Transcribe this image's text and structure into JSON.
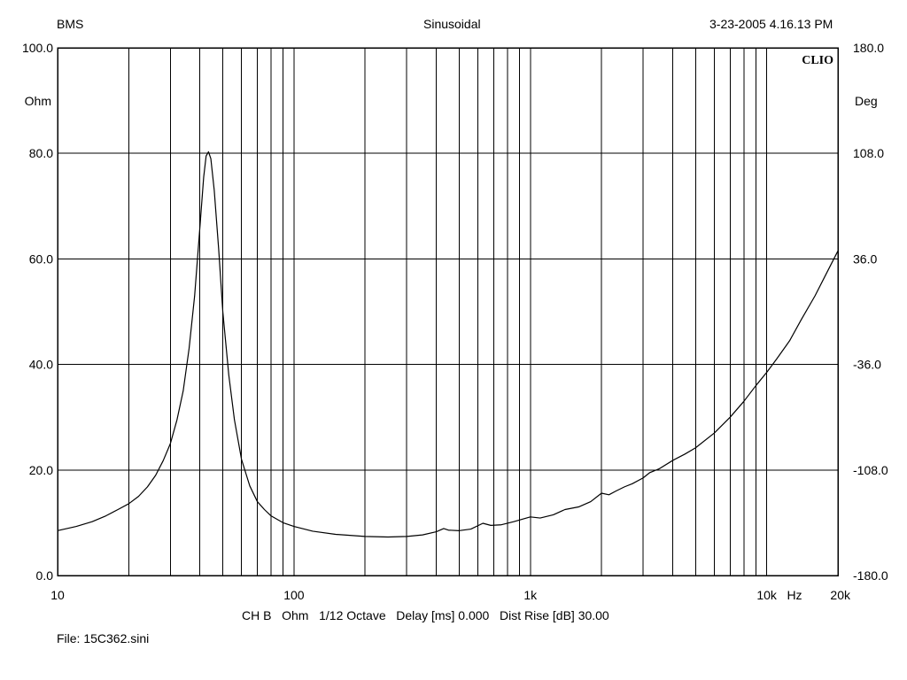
{
  "header": {
    "left": "BMS",
    "center": "Sinusoidal",
    "right": "3-23-2005 4.16.13 PM"
  },
  "brand": "CLIO",
  "footer": {
    "settings": "CH B   Ohm   1/12 Octave   Delay [ms] 0.000   Dist Rise [dB] 30.00",
    "file": "File: 15C362.sini"
  },
  "chart_data": {
    "type": "line",
    "title": "",
    "xlabel": "Hz",
    "ylabel": "Ohm",
    "y2label": "Deg",
    "xscale": "log",
    "xlim": [
      10,
      20000
    ],
    "ylim": [
      0,
      100
    ],
    "y2lim": [
      -180,
      180
    ],
    "grid": true,
    "x_tick_labels": [
      {
        "value": 10,
        "label": "10"
      },
      {
        "value": 100,
        "label": "100"
      },
      {
        "value": 1000,
        "label": "1k"
      },
      {
        "value": 10000,
        "label": "10k"
      },
      {
        "value": 20000,
        "label": "20k"
      }
    ],
    "y_tick_labels": [
      "0.0",
      "20.0",
      "40.0",
      "60.0",
      "80.0",
      "100.0"
    ],
    "y2_tick_labels": [
      "-180.0",
      "-108.0",
      "-36.0",
      "36.0",
      "108.0",
      "180.0"
    ],
    "series": [
      {
        "color": "#000000",
        "points": [
          [
            10,
            8.5
          ],
          [
            12,
            9.3
          ],
          [
            14,
            10.2
          ],
          [
            16,
            11.3
          ],
          [
            18,
            12.5
          ],
          [
            20,
            13.6
          ],
          [
            22,
            15.0
          ],
          [
            24,
            16.8
          ],
          [
            26,
            19.0
          ],
          [
            28,
            21.8
          ],
          [
            30,
            25.0
          ],
          [
            32,
            29.5
          ],
          [
            34,
            35.0
          ],
          [
            36,
            43.0
          ],
          [
            38,
            53.0
          ],
          [
            40,
            66.0
          ],
          [
            41.5,
            75.5
          ],
          [
            42.5,
            79.5
          ],
          [
            43.5,
            80.3
          ],
          [
            44.5,
            79.0
          ],
          [
            46,
            73.0
          ],
          [
            48,
            62.0
          ],
          [
            50,
            50.0
          ],
          [
            53,
            38.0
          ],
          [
            56,
            29.5
          ],
          [
            60,
            22.0
          ],
          [
            65,
            17.0
          ],
          [
            70,
            14.0
          ],
          [
            75,
            12.5
          ],
          [
            80,
            11.3
          ],
          [
            90,
            10.0
          ],
          [
            100,
            9.3
          ],
          [
            120,
            8.4
          ],
          [
            150,
            7.8
          ],
          [
            200,
            7.4
          ],
          [
            250,
            7.3
          ],
          [
            300,
            7.4
          ],
          [
            350,
            7.7
          ],
          [
            400,
            8.3
          ],
          [
            430,
            8.9
          ],
          [
            450,
            8.6
          ],
          [
            500,
            8.5
          ],
          [
            560,
            8.8
          ],
          [
            630,
            9.9
          ],
          [
            680,
            9.5
          ],
          [
            750,
            9.6
          ],
          [
            850,
            10.2
          ],
          [
            1000,
            11.1
          ],
          [
            1100,
            10.9
          ],
          [
            1250,
            11.5
          ],
          [
            1400,
            12.5
          ],
          [
            1600,
            13.0
          ],
          [
            1800,
            14.0
          ],
          [
            2000,
            15.6
          ],
          [
            2150,
            15.3
          ],
          [
            2300,
            16.0
          ],
          [
            2500,
            16.8
          ],
          [
            2700,
            17.4
          ],
          [
            3000,
            18.5
          ],
          [
            3200,
            19.5
          ],
          [
            3500,
            20.2
          ],
          [
            4000,
            21.8
          ],
          [
            4500,
            23.0
          ],
          [
            5000,
            24.2
          ],
          [
            6000,
            27.0
          ],
          [
            7000,
            30.0
          ],
          [
            8000,
            33.0
          ],
          [
            9000,
            36.0
          ],
          [
            10000,
            38.5
          ],
          [
            11000,
            41.0
          ],
          [
            12500,
            44.5
          ],
          [
            14000,
            48.5
          ],
          [
            16000,
            53.0
          ],
          [
            18000,
            57.5
          ],
          [
            20000,
            61.5
          ]
        ]
      }
    ]
  }
}
